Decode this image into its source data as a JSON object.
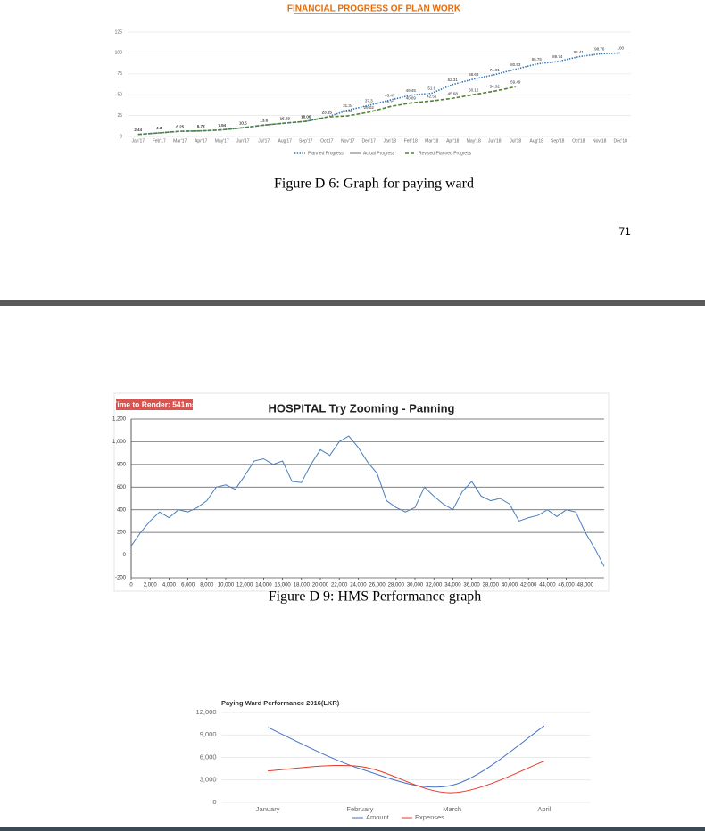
{
  "chart_data": [
    {
      "type": "line",
      "title": "FINANCIAL PROGRESS OF PLAN WORK",
      "categories": [
        "Jan'17",
        "Feb'17",
        "Mar'17",
        "Apr'17",
        "May'17",
        "Jun'17",
        "Jul'17",
        "Aug'17",
        "Sep'17",
        "Oct'17",
        "Nov'17",
        "Dec'17",
        "Jan'18",
        "Feb'18",
        "Mar'18",
        "Apr'18",
        "May'18",
        "Jun'18",
        "Jul'18",
        "Aug'18",
        "Sep'18",
        "Oct'18",
        "Nov'18",
        "Dec'18"
      ],
      "series": [
        {
          "name": "Planned Progress",
          "color": "#2e75b6",
          "dash": "dotted",
          "values": [
            2.44,
            4.3,
            6.25,
            6.72,
            7.94,
            10.5,
            13.6,
            15.93,
            18.06,
            23.15,
            31.34,
            37.3,
            43.47,
            49.45,
            51.8,
            62.31,
            68.68,
            74.01,
            80.53,
            86.75,
            89.74,
            95.41,
            98.76,
            100
          ]
        },
        {
          "name": "Actual Progress",
          "color": "#a6a6a6",
          "dash": "solid",
          "values": [
            null,
            null,
            null,
            null,
            null,
            null,
            null,
            null,
            null,
            null,
            null,
            null,
            null,
            null,
            null,
            null,
            null,
            null,
            null,
            null,
            null,
            null,
            null,
            null
          ]
        },
        {
          "name": "Revised Planned Progress",
          "color": "#548235",
          "dash": "dashed",
          "values": [
            2.44,
            4.3,
            6.25,
            6.72,
            7.94,
            10.5,
            13.6,
            15.93,
            18.06,
            23.15,
            24.68,
            29.02,
            35.71,
            40.09,
            42.51,
            45.68,
            50.12,
            54.32,
            59.49,
            null,
            null,
            null,
            null,
            null
          ]
        }
      ],
      "ylim": [
        0,
        125
      ],
      "yticks": [
        0,
        25,
        50,
        75,
        100,
        125
      ],
      "grid": true,
      "data_labels": true,
      "legend": "bottom"
    },
    {
      "type": "line",
      "title": "HOSPITAL Try Zooming - Panning",
      "badge": "Time to Render: 541ms",
      "x": [
        0,
        1000,
        2000,
        3000,
        4000,
        5000,
        6000,
        7000,
        8000,
        9000,
        10000,
        11000,
        12000,
        13000,
        14000,
        15000,
        16000,
        17000,
        18000,
        19000,
        20000,
        21000,
        22000,
        23000,
        24000,
        25000,
        26000,
        27000,
        28000,
        29000,
        30000,
        31000,
        32000,
        33000,
        34000,
        35000,
        36000,
        37000,
        38000,
        39000,
        40000,
        41000,
        42000,
        43000,
        44000,
        45000,
        46000,
        47000,
        48000,
        49000,
        50000
      ],
      "series": [
        {
          "color": "#4a7ebb",
          "values": [
            80,
            200,
            300,
            380,
            330,
            400,
            380,
            420,
            480,
            600,
            620,
            580,
            700,
            830,
            850,
            800,
            830,
            650,
            640,
            800,
            930,
            880,
            1000,
            1050,
            950,
            820,
            720,
            480,
            420,
            380,
            420,
            600,
            520,
            450,
            400,
            560,
            650,
            520,
            480,
            500,
            450,
            300,
            330,
            350,
            400,
            340,
            400,
            380,
            200,
            60,
            -100
          ]
        }
      ],
      "xlim": [
        0,
        50000
      ],
      "xticks": [
        0,
        {
          "value": 2000,
          "label": "2,000"
        },
        {
          "value": 4000,
          "label": "4,000"
        },
        {
          "value": 6000,
          "label": "6,000"
        },
        {
          "value": 8000,
          "label": "8,000"
        },
        {
          "value": 10000,
          "label": "10,000"
        },
        {
          "value": 12000,
          "label": "12,000"
        },
        {
          "value": 14000,
          "label": "14,000"
        },
        {
          "value": 16000,
          "label": "16,000"
        },
        {
          "value": 18000,
          "label": "18,000"
        },
        {
          "value": 20000,
          "label": "20,000"
        },
        {
          "value": 22000,
          "label": "22,000"
        },
        {
          "value": 24000,
          "label": "24,000"
        },
        {
          "value": 26000,
          "label": "26,000"
        },
        {
          "value": 28000,
          "label": "28,000"
        },
        {
          "value": 30000,
          "label": "30,000"
        },
        {
          "value": 32000,
          "label": "32,000"
        },
        {
          "value": 34000,
          "label": "34,000"
        },
        {
          "value": 36000,
          "label": "36,000"
        },
        {
          "value": 38000,
          "label": "38,000"
        },
        {
          "value": 40000,
          "label": "40,000"
        },
        {
          "value": 42000,
          "label": "42,000"
        },
        {
          "value": 44000,
          "label": "44,000"
        },
        {
          "value": 46000,
          "label": "46,000"
        },
        {
          "value": 48000,
          "label": "48,000"
        }
      ],
      "ylim": [
        -200,
        1200
      ],
      "yticks": [
        -200,
        0,
        200,
        400,
        600,
        800,
        {
          "value": 1000,
          "label": "1,000"
        },
        {
          "value": 1200,
          "label": "1,200"
        }
      ],
      "grid": true
    },
    {
      "type": "line",
      "title": "Paying Ward Performance 2016(LKR)",
      "categories": [
        "January",
        "February",
        "March",
        "April"
      ],
      "series": [
        {
          "name": "Amount",
          "color": "#4472c4",
          "values": [
            10000,
            4500,
            2300,
            10200
          ]
        },
        {
          "name": "Expenses",
          "color": "#e8382b",
          "values": [
            4200,
            4800,
            1300,
            5500
          ]
        }
      ],
      "ylim": [
        0,
        12000
      ],
      "yticks": [
        0,
        {
          "value": 3000,
          "label": "3,000"
        },
        {
          "value": 6000,
          "label": "6,000"
        },
        {
          "value": 9000,
          "label": "9,000"
        },
        {
          "value": 12000,
          "label": "12,000"
        }
      ],
      "grid": true,
      "smooth": true,
      "legend": "bottom"
    }
  ],
  "captions": [
    "Figure D 6: Graph for paying ward",
    "Figure D 9: HMS Performance graph"
  ],
  "page_number": 71
}
